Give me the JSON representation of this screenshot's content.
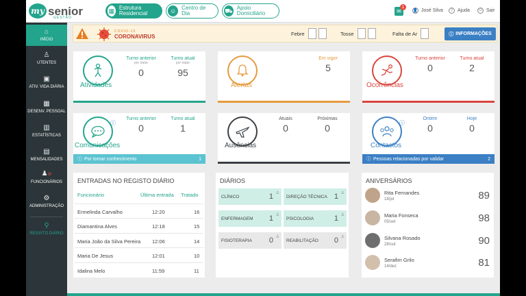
{
  "header": {
    "brand": "senior",
    "logo_mark": "my",
    "brand_sub": "GESTÃO",
    "services": [
      {
        "label": "Estrutura Residencial",
        "icon": "building-icon",
        "active": true
      },
      {
        "label": "Centro de Dia",
        "icon": "people-icon",
        "active": false
      },
      {
        "label": "Apoio Domiciliário",
        "icon": "car-icon",
        "active": false
      }
    ],
    "notifications_count": "1",
    "user_name": "José Silva",
    "help_label": "Ajuda",
    "logout_label": "Sair"
  },
  "sidebar": {
    "items": [
      {
        "label": "INÍCIO",
        "icon": "home-icon"
      },
      {
        "label": "UTENTES",
        "icon": "user-icon"
      },
      {
        "label": "ATIV. VIDA DIÁRIA",
        "icon": "calendar-icon"
      },
      {
        "label": "DESENV. PESSOAL",
        "icon": "calendar-grid-icon"
      },
      {
        "label": "ESTATÍSTICAS",
        "icon": "bar-chart-icon"
      },
      {
        "label": "MENSALIDADES",
        "icon": "money-icon"
      },
      {
        "label": "FUNCIONÁRIOS",
        "icon": "staff-icon"
      },
      {
        "label": "ADMINISTRAÇÃO",
        "icon": "cogs-icon"
      },
      {
        "label": "REGISTO DIÁRIO",
        "icon": "link-icon"
      }
    ]
  },
  "covid": {
    "label_top": "COVID-19",
    "label_main": "CORONAVIRUS",
    "symptoms": [
      {
        "label": "Febre"
      },
      {
        "label": "Tosse"
      },
      {
        "label": "Falta de Ar"
      }
    ],
    "info_button": "INFORMAÇÕES"
  },
  "cards": {
    "atividades": {
      "title": "Atividades",
      "col1_head": "Turno anterior",
      "col1_sub": "por tratar",
      "col1_val": "0",
      "col2_head": "Turno atual",
      "col2_sub": "por tratar",
      "col2_val": "95"
    },
    "alertas": {
      "title": "Alertas",
      "col_head": "Em vigor",
      "col_val": "5"
    },
    "ocorrencias": {
      "title": "Ocorrências",
      "col1_head": "Turno anterior",
      "col1_val": "0",
      "col2_head": "Turno atual",
      "col2_val": "2"
    },
    "comunicacoes": {
      "title": "Comunicações",
      "col1_head": "Turno anterior",
      "col1_val": "0",
      "col2_head": "Turno atual",
      "col2_val": "1",
      "footer_label": "Por tomar conhecimento",
      "footer_count": "1"
    },
    "ausencias": {
      "title": "Ausências",
      "col1_head": "Atuais",
      "col1_val": "0",
      "col2_head": "Próximas",
      "col2_val": "0"
    },
    "contactos": {
      "title": "Contactos",
      "col1_head": "Ontem",
      "col1_val": "0",
      "col2_head": "Hoje",
      "col2_val": "0",
      "footer_label": "Pessoas relacionadas por validar",
      "footer_count": "2"
    }
  },
  "entradas": {
    "title": "ENTRADAS NO REGISTO DIÁRIO",
    "headers": [
      "Funcionário",
      "Última entrada",
      "Tratado"
    ],
    "rows": [
      {
        "name": "Ermelinda Carvalho",
        "time": "12:20",
        "count": "16"
      },
      {
        "name": "Diamantina Alves",
        "time": "12:18",
        "count": "15"
      },
      {
        "name": "Maria João da Silva Pereira",
        "time": "12:06",
        "count": "14"
      },
      {
        "name": "Maria De Jesus",
        "time": "12:01",
        "count": "10"
      },
      {
        "name": "Idalina Melo",
        "time": "11:59",
        "count": "11"
      }
    ]
  },
  "diarios": {
    "title": "DIÁRIOS",
    "cells": [
      {
        "label": "CLÍNICO",
        "value": "1",
        "highlight": true
      },
      {
        "label": "DIREÇÃO TÉCNICA",
        "value": "1",
        "highlight": true
      },
      {
        "label": "ENFERMAGEM",
        "value": "1",
        "highlight": true
      },
      {
        "label": "PSICOLOGIA",
        "value": "1",
        "highlight": true
      },
      {
        "label": "FISIOTERAPIA",
        "value": "0",
        "highlight": false
      },
      {
        "label": "REABILITAÇÃO",
        "value": "0",
        "highlight": false
      }
    ]
  },
  "aniversarios": {
    "title": "ANIVERSÁRIOS",
    "rows": [
      {
        "name": "Rita Fernandes",
        "date": "18/jul",
        "age": "89"
      },
      {
        "name": "Maria Fonseca",
        "date": "05/set",
        "age": "98"
      },
      {
        "name": "Silvana Rosado",
        "date": "28/out",
        "age": "90"
      },
      {
        "name": "Serafim Grilo",
        "date": "14/dez",
        "age": "81"
      }
    ]
  },
  "colors": {
    "accent": "#23a48c",
    "alert": "#e59a3c",
    "danger": "#d9453c",
    "info": "#3b7fc4",
    "dark": "#3a3f44"
  }
}
